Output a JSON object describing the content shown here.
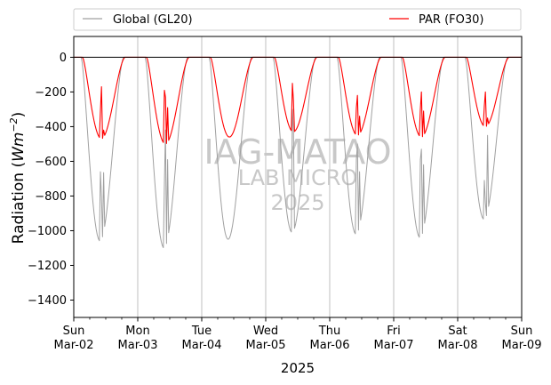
{
  "chart_data": {
    "type": "line",
    "ylabel": "Radiation ($Wm{-2}$)",
    "ylabel_main": "Radiation (",
    "ylabel_math": "Wm",
    "ylabel_exp": "−2",
    "ylabel_close": ")",
    "xlabel": "2025",
    "ylim": [
      -1500,
      120
    ],
    "xlim": [
      0,
      7
    ],
    "yticks": [
      0,
      -200,
      -400,
      -600,
      -800,
      -1000,
      -1200,
      -1400
    ],
    "ytick_labels": [
      "0",
      "−200",
      "−400",
      "−600",
      "−800",
      "−1000",
      "−1200",
      "−1400"
    ],
    "xticks": [
      {
        "x": 0,
        "day": "Sun",
        "date": "Mar-02"
      },
      {
        "x": 1,
        "day": "Mon",
        "date": "Mar-03"
      },
      {
        "x": 2,
        "day": "Tue",
        "date": "Mar-04"
      },
      {
        "x": 3,
        "day": "Wed",
        "date": "Mar-05"
      },
      {
        "x": 4,
        "day": "Thu",
        "date": "Mar-06"
      },
      {
        "x": 5,
        "day": "Fri",
        "date": "Mar-07"
      },
      {
        "x": 6,
        "day": "Sat",
        "date": "Mar-08"
      },
      {
        "x": 7,
        "day": "Sun",
        "date": "Mar-09"
      }
    ],
    "grid": "vertical",
    "legend_placement": "above plot",
    "watermark": [
      "IAG-MATAO",
      "LAB MICRO",
      "2025"
    ],
    "series": [
      {
        "name": "Global (GL20)",
        "color": "#a0a0a0",
        "daily_min": [
          -1060,
          -1100,
          -1050,
          -1010,
          -1020,
          -1040,
          -935
        ],
        "daily_spikes": [
          [
            -660,
            -810,
            -665
          ],
          [
            -730,
            -420,
            -590
          ],
          [],
          [
            -300,
            -420
          ],
          [
            -590,
            -500,
            -660
          ],
          [
            -590,
            -530,
            -620
          ],
          [
            -710,
            -840,
            -450
          ]
        ]
      },
      {
        "name": "PAR (FO30)",
        "color": "#ff0000",
        "daily_min": [
          -470,
          -500,
          -460,
          -430,
          -450,
          -460,
          -400
        ],
        "daily_spikes": [
          [
            -310,
            -170,
            -420
          ],
          [
            -190,
            -230,
            -290
          ],
          [],
          [
            -150,
            -250
          ],
          [
            -290,
            -220,
            -340
          ],
          [
            -300,
            -200,
            -310
          ],
          [
            -280,
            -200,
            -350
          ]
        ]
      }
    ],
    "zero_line": 0
  }
}
